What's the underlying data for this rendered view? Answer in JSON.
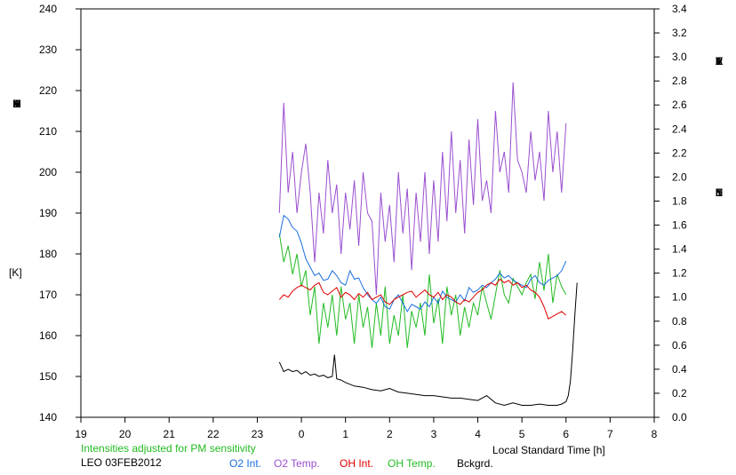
{
  "chart_data": {
    "type": "line",
    "left_axis": {
      "label_letters": [
        "T",
        "E",
        "M",
        "P",
        "E",
        "R",
        "A",
        "T",
        "U",
        "R",
        "E"
      ],
      "unit": "[K]",
      "ylim": [
        140,
        240
      ],
      "ticks": [
        "140",
        "150",
        "160",
        "170",
        "180",
        "190",
        "200",
        "210",
        "220",
        "230",
        "240"
      ]
    },
    "right_axis": {
      "label_word1": [
        "R",
        "E",
        "L",
        "A",
        "T",
        "I",
        "V",
        "E"
      ],
      "label_word2": [
        "I",
        "N",
        "T",
        "E",
        "N",
        "S",
        "I",
        "T",
        "Y"
      ],
      "ylim": [
        0.0,
        3.4
      ],
      "ticks": [
        "0.0",
        "0.2",
        "0.4",
        "0.6",
        "0.8",
        "1.0",
        "1.2",
        "1.4",
        "1.6",
        "1.8",
        "2.0",
        "2.2",
        "2.4",
        "2.6",
        "2.8",
        "3.0",
        "3.2",
        "3.4"
      ]
    },
    "x_axis": {
      "label": "Local Standard Time [h]",
      "ticks": [
        "19",
        "20",
        "21",
        "22",
        "23",
        "0",
        "1",
        "2",
        "3",
        "4",
        "5",
        "6",
        "7",
        "8"
      ],
      "xlim": [
        19,
        32
      ]
    },
    "note": "Intensities adjusted for PM sensitivity",
    "station": "LEO 03FEB2012",
    "legend": [
      {
        "label": "O2 Int.",
        "color": "#1a6fe0"
      },
      {
        "label": "O2 Temp.",
        "color": "#9a4fd0"
      },
      {
        "label": "OH Int.",
        "color": "#e00000"
      },
      {
        "label": "OH Temp.",
        "color": "#22bb22"
      },
      {
        "label": "Bckgrd.",
        "color": "#000000"
      }
    ],
    "series": [
      {
        "name": "O2 Temp.",
        "color": "#9a4fd0",
        "axis": "left",
        "x": [
          23.5,
          23.6,
          23.7,
          23.8,
          23.9,
          24.0,
          24.1,
          24.2,
          24.3,
          24.4,
          24.5,
          24.6,
          24.7,
          24.8,
          24.9,
          25.0,
          25.1,
          25.2,
          25.3,
          25.4,
          25.5,
          25.6,
          25.7,
          25.8,
          25.9,
          26.0,
          26.1,
          26.2,
          26.3,
          26.4,
          26.5,
          26.6,
          26.7,
          26.8,
          26.9,
          27.0,
          27.1,
          27.2,
          27.3,
          27.4,
          27.5,
          27.6,
          27.7,
          27.8,
          27.9,
          28.0,
          28.1,
          28.2,
          28.3,
          28.4,
          28.5,
          28.6,
          28.7,
          28.8,
          28.9,
          29.0,
          29.1,
          29.2,
          29.3,
          29.4,
          29.5,
          29.6,
          29.7,
          29.8,
          29.9,
          30.0
        ],
        "y": [
          190,
          217,
          195,
          205,
          190,
          200,
          207,
          195,
          178,
          195,
          185,
          203,
          190,
          197,
          180,
          195,
          186,
          198,
          182,
          200,
          190,
          188,
          170,
          195,
          183,
          192,
          178,
          200,
          185,
          196,
          176,
          195,
          183,
          200,
          180,
          198,
          183,
          205,
          188,
          210,
          190,
          203,
          185,
          208,
          192,
          213,
          193,
          198,
          190,
          215,
          200,
          205,
          195,
          222,
          203,
          200,
          195,
          210,
          198,
          205,
          193,
          215,
          200,
          210,
          195,
          212
        ]
      },
      {
        "name": "OH Temp.",
        "color": "#22bb22",
        "axis": "left",
        "x": [
          23.5,
          23.6,
          23.7,
          23.8,
          23.9,
          24.0,
          24.1,
          24.2,
          24.3,
          24.4,
          24.5,
          24.6,
          24.7,
          24.8,
          24.9,
          25.0,
          25.1,
          25.2,
          25.3,
          25.4,
          25.5,
          25.6,
          25.7,
          25.8,
          25.9,
          26.0,
          26.1,
          26.2,
          26.3,
          26.4,
          26.5,
          26.6,
          26.7,
          26.8,
          26.9,
          27.0,
          27.1,
          27.2,
          27.3,
          27.4,
          27.5,
          27.6,
          27.7,
          27.8,
          27.9,
          28.0,
          28.1,
          28.2,
          28.3,
          28.4,
          28.5,
          28.6,
          28.7,
          28.8,
          28.9,
          29.0,
          29.1,
          29.2,
          29.3,
          29.4,
          29.5,
          29.6,
          29.7,
          29.8,
          29.9,
          30.0
        ],
        "y": [
          185,
          178,
          182,
          175,
          180,
          172,
          176,
          165,
          172,
          158,
          168,
          162,
          170,
          160,
          172,
          164,
          168,
          158,
          170,
          162,
          167,
          157,
          168,
          160,
          172,
          158,
          165,
          160,
          170,
          157,
          166,
          162,
          168,
          160,
          175,
          163,
          169,
          158,
          172,
          165,
          170,
          160,
          167,
          162,
          168,
          165,
          172,
          168,
          164,
          170,
          176,
          170,
          168,
          174,
          172,
          170,
          173,
          175,
          169,
          178,
          171,
          180,
          168,
          175,
          172,
          170
        ]
      },
      {
        "name": "O2 Int.",
        "color": "#1a6fe0",
        "axis": "right",
        "x": [
          23.5,
          23.6,
          23.7,
          23.8,
          23.9,
          24.0,
          24.1,
          24.2,
          24.3,
          24.4,
          24.5,
          24.6,
          24.7,
          24.8,
          24.9,
          25.0,
          25.1,
          25.2,
          25.3,
          25.4,
          25.5,
          25.6,
          25.7,
          25.8,
          25.9,
          26.0,
          26.1,
          26.2,
          26.3,
          26.4,
          26.5,
          26.6,
          26.7,
          26.8,
          26.9,
          27.0,
          27.1,
          27.2,
          27.3,
          27.4,
          27.5,
          27.6,
          27.7,
          27.8,
          27.9,
          28.0,
          28.1,
          28.2,
          28.3,
          28.4,
          28.5,
          28.6,
          28.7,
          28.8,
          28.9,
          29.0,
          29.1,
          29.2,
          29.3,
          29.4,
          29.5,
          29.6,
          29.7,
          29.8,
          29.9,
          30.0
        ],
        "y": [
          1.5,
          1.68,
          1.65,
          1.58,
          1.55,
          1.45,
          1.32,
          1.25,
          1.18,
          1.2,
          1.14,
          1.15,
          1.22,
          1.18,
          1.12,
          1.1,
          1.22,
          1.15,
          1.16,
          1.08,
          1.02,
          0.98,
          0.95,
          1.0,
          0.92,
          0.9,
          0.98,
          1.02,
          0.95,
          0.88,
          0.94,
          0.92,
          0.9,
          0.96,
          0.92,
          1.0,
          0.95,
          1.05,
          1.0,
          0.98,
          0.96,
          1.02,
          0.97,
          1.08,
          1.04,
          1.06,
          1.1,
          1.08,
          1.12,
          1.15,
          1.2,
          1.16,
          1.18,
          1.14,
          1.12,
          1.1,
          1.08,
          1.15,
          1.18,
          1.12,
          1.1,
          1.14,
          1.16,
          1.18,
          1.22,
          1.3
        ]
      },
      {
        "name": "OH Int.",
        "color": "#e00000",
        "axis": "right",
        "x": [
          23.5,
          23.6,
          23.7,
          23.8,
          23.9,
          24.0,
          24.1,
          24.2,
          24.3,
          24.4,
          24.5,
          24.6,
          24.7,
          24.8,
          24.9,
          25.0,
          25.1,
          25.2,
          25.3,
          25.4,
          25.5,
          25.6,
          25.7,
          25.8,
          25.9,
          26.0,
          26.1,
          26.2,
          26.3,
          26.4,
          26.5,
          26.6,
          26.7,
          26.8,
          26.9,
          27.0,
          27.1,
          27.2,
          27.3,
          27.4,
          27.5,
          27.6,
          27.7,
          27.8,
          27.9,
          28.0,
          28.1,
          28.2,
          28.3,
          28.4,
          28.5,
          28.6,
          28.7,
          28.8,
          28.9,
          29.0,
          29.1,
          29.2,
          29.3,
          29.4,
          29.5,
          29.6,
          29.7,
          29.8,
          29.9,
          30.0
        ],
        "y": [
          0.98,
          1.02,
          1.0,
          1.05,
          1.08,
          1.1,
          1.08,
          1.06,
          1.1,
          1.12,
          1.04,
          1.02,
          1.05,
          1.08,
          1.0,
          1.04,
          1.02,
          0.98,
          1.03,
          1.0,
          1.04,
          0.98,
          1.0,
          1.02,
          0.96,
          0.94,
          0.98,
          1.0,
          1.02,
          1.04,
          1.05,
          1.0,
          1.03,
          1.06,
          1.02,
          1.0,
          1.04,
          0.98,
          1.02,
          1.0,
          0.96,
          0.94,
          0.98,
          0.96,
          1.0,
          1.04,
          1.06,
          1.1,
          1.12,
          1.1,
          1.15,
          1.12,
          1.14,
          1.1,
          1.12,
          1.08,
          1.1,
          1.06,
          1.04,
          1.0,
          0.92,
          0.82,
          0.84,
          0.86,
          0.88,
          0.85
        ]
      },
      {
        "name": "Bckgrd.",
        "color": "#000000",
        "axis": "right",
        "x": [
          23.5,
          23.6,
          23.7,
          23.8,
          23.9,
          24.0,
          24.1,
          24.2,
          24.3,
          24.4,
          24.5,
          24.6,
          24.7,
          24.75,
          24.8,
          24.9,
          25.0,
          25.2,
          25.4,
          25.6,
          25.8,
          26.0,
          26.2,
          26.4,
          26.6,
          26.8,
          27.0,
          27.2,
          27.4,
          27.6,
          27.8,
          28.0,
          28.2,
          28.4,
          28.6,
          28.8,
          29.0,
          29.2,
          29.4,
          29.6,
          29.8,
          29.9,
          30.0,
          30.05,
          30.1,
          30.15,
          30.2,
          30.25
        ],
        "y": [
          0.46,
          0.38,
          0.4,
          0.38,
          0.39,
          0.36,
          0.38,
          0.35,
          0.36,
          0.34,
          0.35,
          0.33,
          0.34,
          0.52,
          0.32,
          0.31,
          0.29,
          0.26,
          0.25,
          0.23,
          0.22,
          0.24,
          0.21,
          0.2,
          0.19,
          0.18,
          0.18,
          0.17,
          0.16,
          0.16,
          0.15,
          0.14,
          0.18,
          0.12,
          0.1,
          0.12,
          0.1,
          0.1,
          0.11,
          0.1,
          0.1,
          0.11,
          0.13,
          0.18,
          0.3,
          0.55,
          0.85,
          1.12
        ]
      }
    ]
  }
}
